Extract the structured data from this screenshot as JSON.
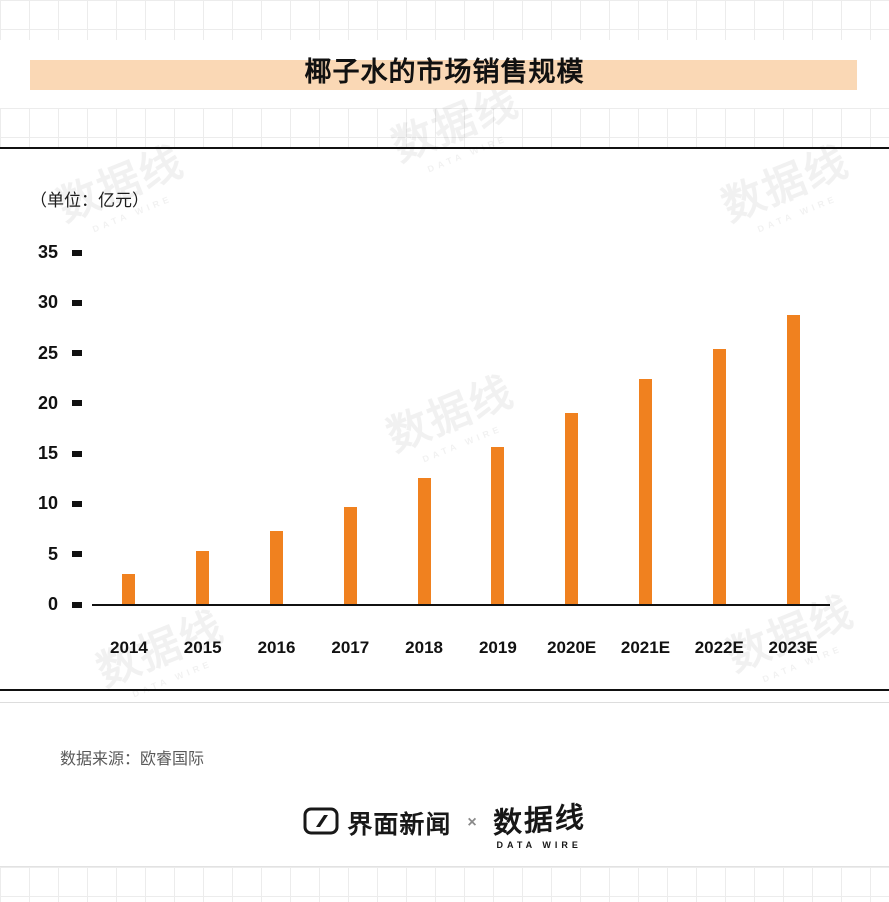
{
  "title": "椰子水的市场销售规模",
  "unit_label": "（单位：亿元）",
  "source_text": "数据来源：欧睿国际",
  "footer": {
    "jiemian_label": "界面新闻",
    "separator": "×",
    "datawire_cn": "数据线",
    "datawire_en": "DATA WIRE"
  },
  "watermark": {
    "cn": "数据线",
    "en": "DATA WIRE"
  },
  "colors": {
    "bar": "#f0811f",
    "title_highlight": "#fad8b5",
    "axis": "#111111",
    "source_text": "#595959",
    "grid": "#ececec"
  },
  "chart_data": {
    "type": "bar",
    "title": "椰子水的市场销售规模",
    "unit": "亿元",
    "categories": [
      "2014",
      "2015",
      "2016",
      "2017",
      "2018",
      "2019",
      "2020E",
      "2021E",
      "2022E",
      "2023E"
    ],
    "values": [
      3.0,
      5.3,
      7.3,
      9.6,
      12.5,
      15.6,
      19.0,
      22.4,
      25.4,
      28.7
    ],
    "ylim": [
      0,
      35
    ],
    "yticks": [
      0,
      5,
      10,
      15,
      20,
      25,
      30,
      35
    ],
    "grid": false,
    "legend": "none",
    "bar_color": "#f0811f"
  }
}
